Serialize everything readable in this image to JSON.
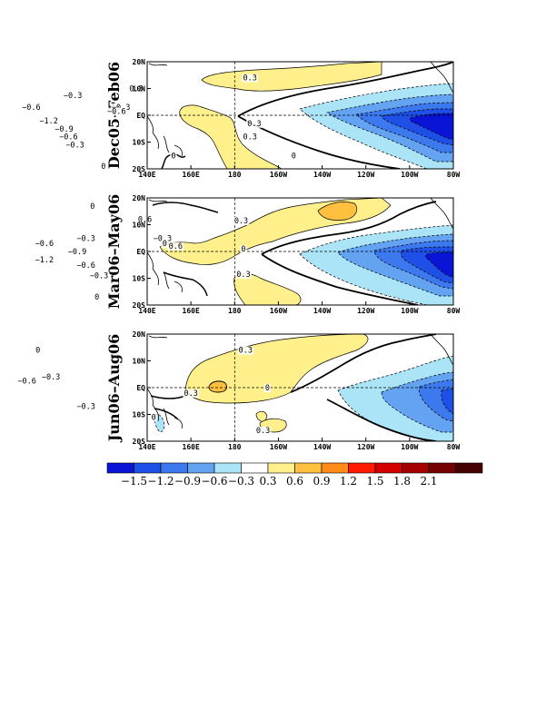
{
  "figure": {
    "lon_ticks": [
      "140E",
      "160E",
      "180",
      "160W",
      "140W",
      "120W",
      "100W",
      "80W"
    ],
    "lat_ticks": [
      "20N",
      "10N",
      "EQ",
      "10S",
      "20S"
    ],
    "panels": [
      {
        "id": "p1",
        "title": "Dec05–Feb06",
        "labels": [
          {
            "text": "0.3",
            "lon": -173,
            "lat": 14
          },
          {
            "text": "0.3",
            "lon": 135,
            "lat": 10
          },
          {
            "text": "0.3",
            "lon": -171,
            "lat": -3
          },
          {
            "text": "0.3",
            "lon": -173,
            "lat": -8
          },
          {
            "text": "0",
            "lon": 152,
            "lat": -15
          },
          {
            "text": "−0.3",
            "lon": 128,
            "lat": 3
          },
          {
            "text": "−0.6",
            "lon": 126,
            "lat": 1.5
          },
          {
            "text": "−0.3",
            "lon": 106,
            "lat": 7.5
          },
          {
            "text": "−0.6",
            "lon": 87,
            "lat": 3
          },
          {
            "text": "−1.2",
            "lon": 95,
            "lat": -2
          },
          {
            "text": "−0.9",
            "lon": 102,
            "lat": -5
          },
          {
            "text": "−0.6",
            "lon": 104,
            "lat": -8
          },
          {
            "text": "−0.3",
            "lon": 107,
            "lat": -11
          },
          {
            "text": "0",
            "lon": 120,
            "lat": -19
          },
          {
            "text": "0",
            "lon": -153,
            "lat": -15
          }
        ]
      },
      {
        "id": "p2",
        "title": "Mar06–May06",
        "labels": [
          {
            "text": "0.3",
            "lon": -177,
            "lat": 11.5
          },
          {
            "text": "0.6",
            "lon": 139,
            "lat": 12
          },
          {
            "text": "0.6",
            "lon": 153,
            "lat": 2
          },
          {
            "text": "0.3",
            "lon": -176,
            "lat": -8.5
          },
          {
            "text": "−0.3",
            "lon": 147,
            "lat": 5
          },
          {
            "text": "0",
            "lon": 148,
            "lat": 3
          },
          {
            "text": "−0.3",
            "lon": 112,
            "lat": 5
          },
          {
            "text": "−0.9",
            "lon": 108,
            "lat": 0
          },
          {
            "text": "−0.6",
            "lon": 93,
            "lat": 3
          },
          {
            "text": "−1.2",
            "lon": 93,
            "lat": -3
          },
          {
            "text": "−0.6",
            "lon": 112,
            "lat": -5
          },
          {
            "text": "−0.3",
            "lon": 118,
            "lat": -9
          },
          {
            "text": "0",
            "lon": 117,
            "lat": -17
          },
          {
            "text": "0",
            "lon": -176,
            "lat": 1
          },
          {
            "text": "0",
            "lon": 115,
            "lat": 17
          }
        ]
      },
      {
        "id": "p3",
        "title": "Jun06–Aug06",
        "labels": [
          {
            "text": "0.3",
            "lon": -175,
            "lat": 14
          },
          {
            "text": "0.3",
            "lon": 160,
            "lat": -2
          },
          {
            "text": "0.3",
            "lon": -167,
            "lat": -16
          },
          {
            "text": "0",
            "lon": 143,
            "lat": -11
          },
          {
            "text": "0",
            "lon": -165,
            "lat": 0
          },
          {
            "text": "0",
            "lon": 90,
            "lat": 14
          },
          {
            "text": "−0.3",
            "lon": 96,
            "lat": 4
          },
          {
            "text": "−0.6",
            "lon": 85,
            "lat": 2.5
          },
          {
            "text": "−0.3",
            "lon": 112,
            "lat": -7
          }
        ]
      }
    ]
  },
  "colorbar": {
    "labels": [
      "−1.5",
      "−1.2",
      "−0.9",
      "−0.6",
      "−0.3",
      "0.3",
      "0.6",
      "0.9",
      "1.2",
      "1.5",
      "1.8",
      "2.1"
    ],
    "colors": [
      "#0a14d6",
      "#1e50e8",
      "#3c78ee",
      "#64a2f2",
      "#aae4f6",
      "#ffffff",
      "#fff08c",
      "#ffc040",
      "#ff8c18",
      "#ff1a00",
      "#d40000",
      "#a40000",
      "#740000",
      "#440000"
    ]
  }
}
